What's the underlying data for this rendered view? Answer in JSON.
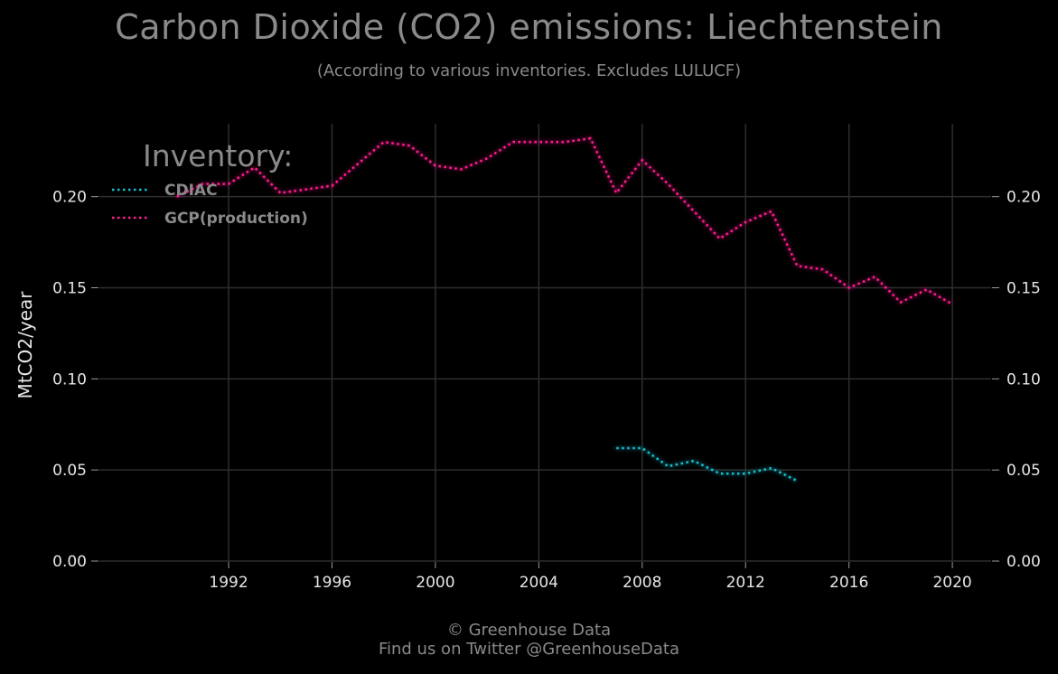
{
  "chart_data": {
    "type": "line",
    "title": "Carbon Dioxide (CO2) emissions: Liechtenstein",
    "subtitle": "(According to various inventories. Excludes LULUCF)",
    "ylabel": "MtCO2/year",
    "xlabel": "",
    "xlim": [
      1987,
      2021.5
    ],
    "ylim": [
      0,
      0.24
    ],
    "x_ticks": [
      1992,
      1996,
      2000,
      2004,
      2008,
      2012,
      2016,
      2020
    ],
    "y_ticks": [
      0.0,
      0.05,
      0.1,
      0.15,
      0.2
    ],
    "y_tick_labels": [
      "0.00",
      "0.05",
      "0.10",
      "0.15",
      "0.20"
    ],
    "grid": true,
    "legend": {
      "title": "Inventory:",
      "placement": "top-left"
    },
    "series": [
      {
        "name": "CDIAC",
        "color": "#17becf",
        "style": "dotted",
        "x": [
          2007,
          2008,
          2009,
          2010,
          2011,
          2012,
          2013,
          2014
        ],
        "y": [
          0.062,
          0.062,
          0.052,
          0.055,
          0.048,
          0.048,
          0.051,
          0.044
        ]
      },
      {
        "name": "GCP(production)",
        "color": "#ff1f8e",
        "style": "dotted",
        "x": [
          1990,
          1991,
          1992,
          1993,
          1994,
          1995,
          1996,
          1997,
          1998,
          1999,
          2000,
          2001,
          2002,
          2003,
          2004,
          2005,
          2006,
          2007,
          2008,
          2009,
          2010,
          2011,
          2012,
          2013,
          2014,
          2015,
          2016,
          2017,
          2018,
          2019,
          2020
        ],
        "y": [
          0.2,
          0.207,
          0.207,
          0.216,
          0.202,
          0.204,
          0.206,
          0.218,
          0.23,
          0.228,
          0.217,
          0.215,
          0.221,
          0.23,
          0.23,
          0.23,
          0.232,
          0.202,
          0.22,
          0.207,
          0.192,
          0.177,
          0.186,
          0.192,
          0.162,
          0.16,
          0.15,
          0.156,
          0.142,
          0.149,
          0.141
        ]
      }
    ]
  },
  "footer": {
    "line1": "© Greenhouse Data",
    "line2": "Find us on Twitter @GreenhouseData"
  }
}
